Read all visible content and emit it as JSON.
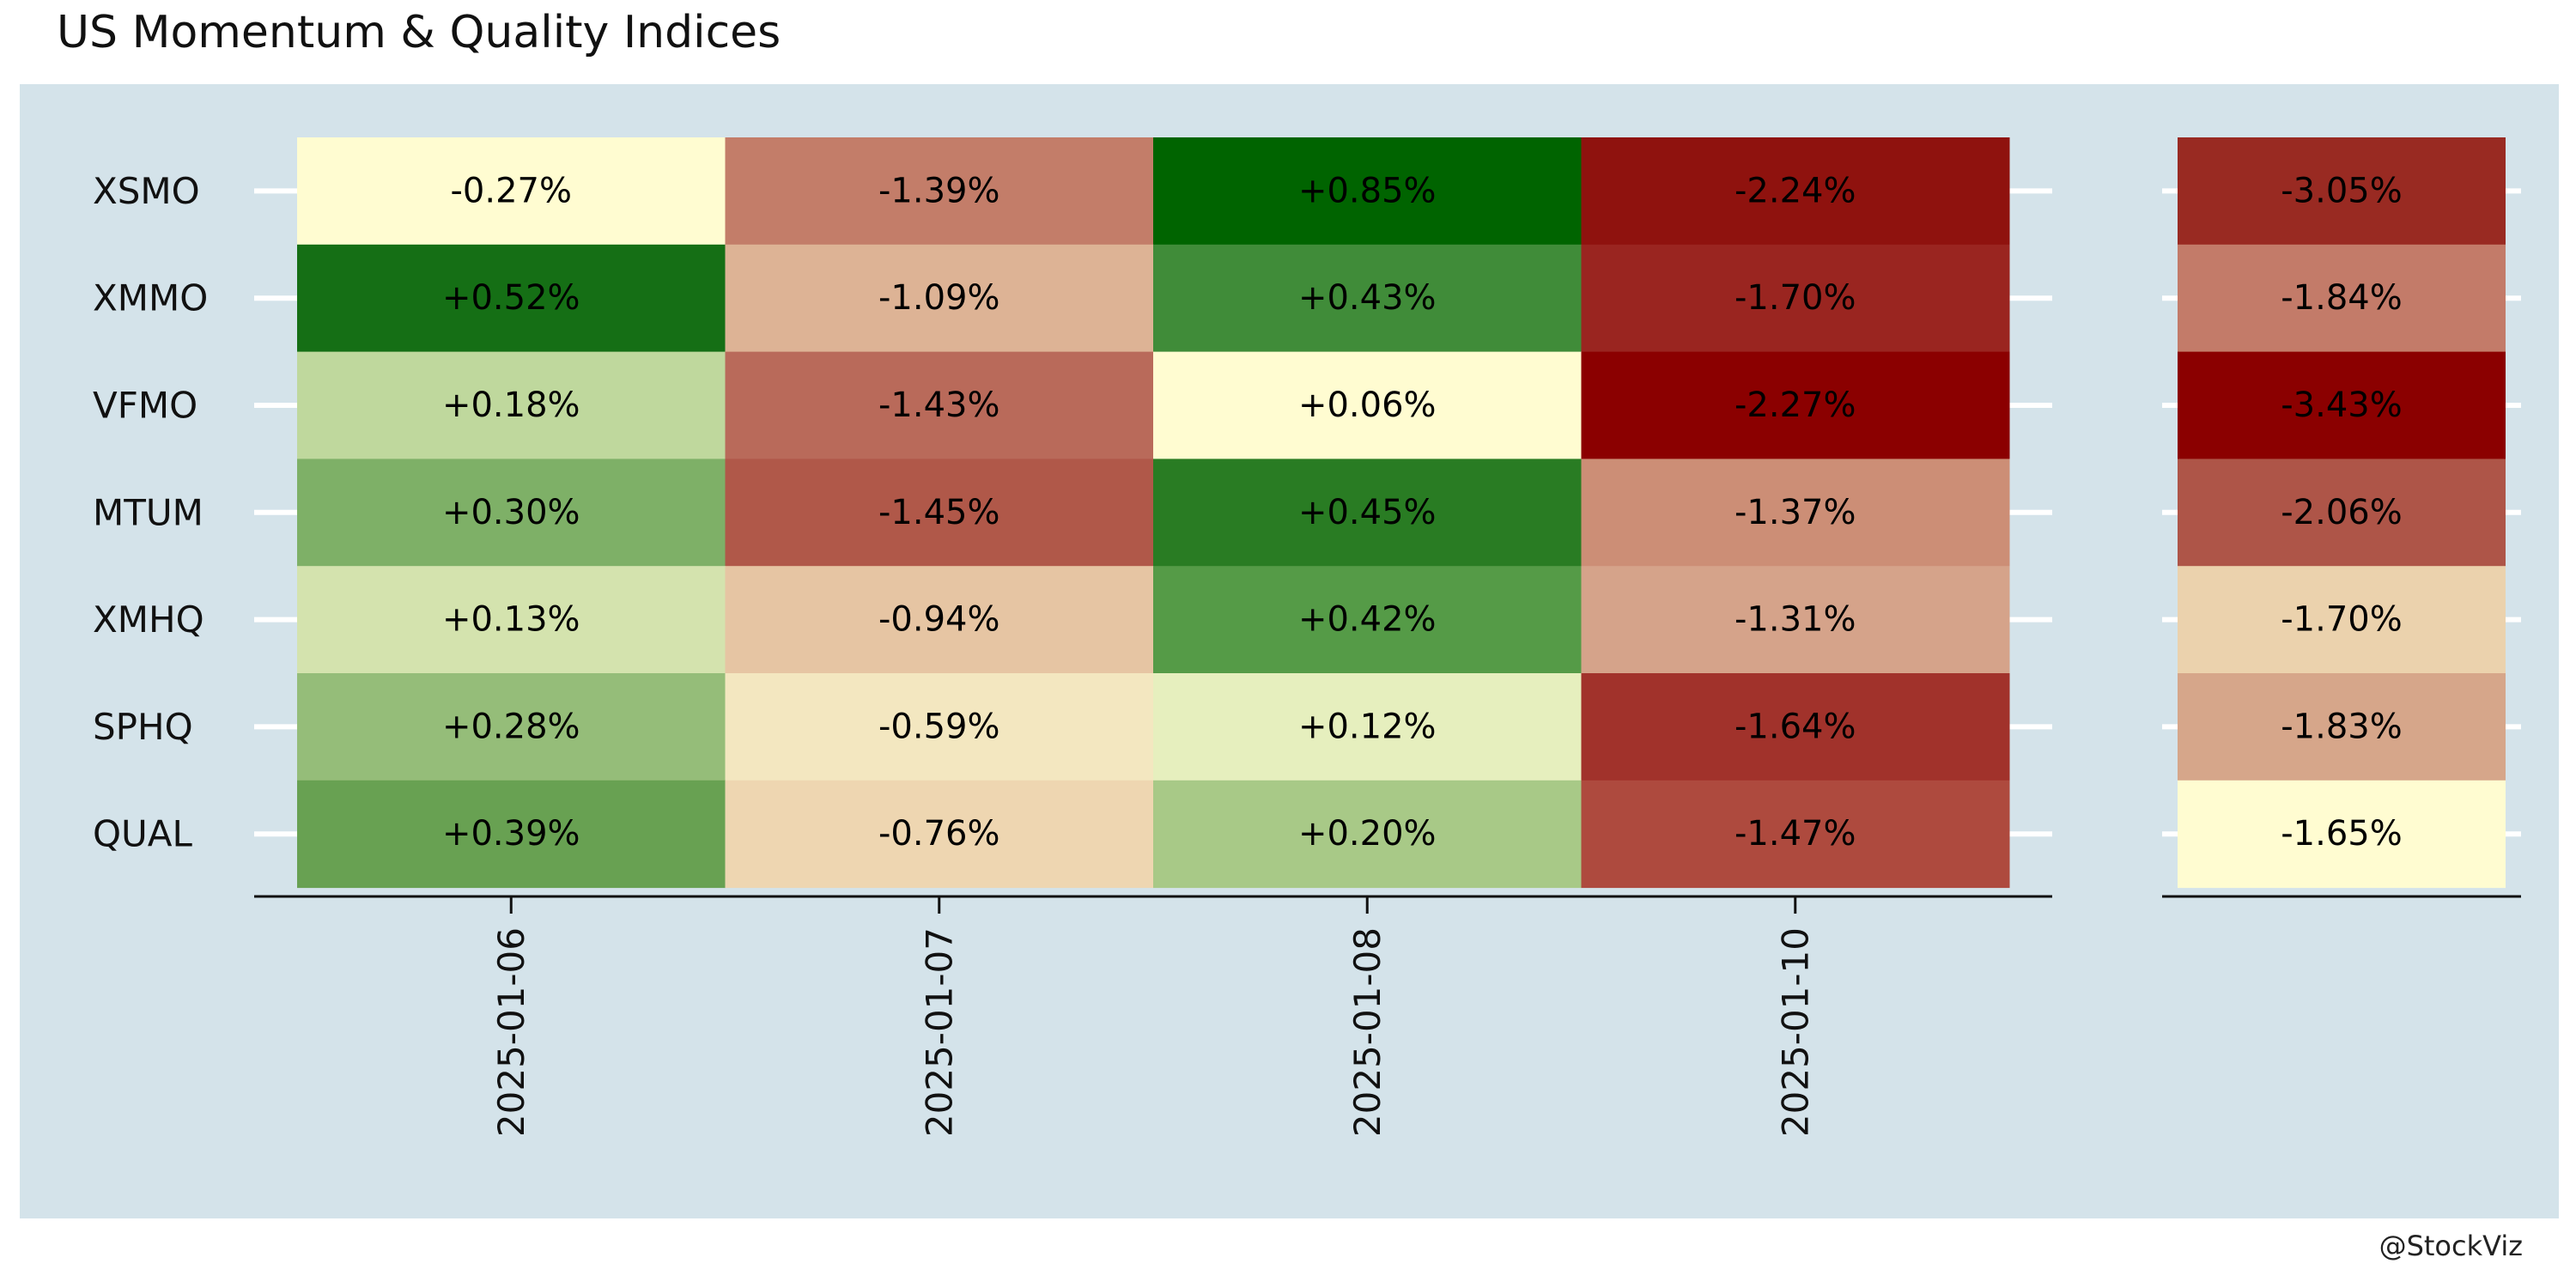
{
  "title": "US Momentum & Quality Indices",
  "credit": "@StockViz",
  "chart_data": {
    "type": "heatmap",
    "title": "US Momentum & Quality Indices",
    "rows": [
      "XSMO",
      "XMMO",
      "VFMO",
      "MTUM",
      "XMHQ",
      "SPHQ",
      "QUAL"
    ],
    "columns": [
      "2025-01-06",
      "2025-01-07",
      "2025-01-08",
      "2025-01-10"
    ],
    "values": [
      [
        -0.27,
        -1.39,
        0.85,
        -2.24
      ],
      [
        0.52,
        -1.09,
        0.43,
        -1.7
      ],
      [
        0.18,
        -1.43,
        0.06,
        -2.27
      ],
      [
        0.3,
        -1.45,
        0.45,
        -1.37
      ],
      [
        0.13,
        -0.94,
        0.42,
        -1.31
      ],
      [
        0.28,
        -0.59,
        0.12,
        -1.64
      ],
      [
        0.39,
        -0.76,
        0.2,
        -1.47
      ]
    ],
    "labels": [
      [
        "-0.27%",
        "-1.39%",
        "+0.85%",
        "-2.24%"
      ],
      [
        "+0.52%",
        "-1.09%",
        "+0.43%",
        "-1.70%"
      ],
      [
        "+0.18%",
        "-1.43%",
        "+0.06%",
        "-2.27%"
      ],
      [
        "+0.30%",
        "-1.45%",
        "+0.45%",
        "-1.37%"
      ],
      [
        "+0.13%",
        "-0.94%",
        "+0.42%",
        "-1.31%"
      ],
      [
        "+0.28%",
        "-0.59%",
        "+0.12%",
        "-1.64%"
      ],
      [
        "+0.39%",
        "-0.76%",
        "+0.20%",
        "-1.47%"
      ]
    ],
    "cell_colors": [
      [
        "#fffcd1",
        "#c37d69",
        "#006400",
        "#8f120e"
      ],
      [
        "#156f15",
        "#ddb395",
        "#408c39",
        "#9a2520"
      ],
      [
        "#bfd89d",
        "#b96a5a",
        "#fffcd1",
        "#8b0000"
      ],
      [
        "#7eb067",
        "#b05849",
        "#297c23",
        "#cc8e76"
      ],
      [
        "#d4e3ae",
        "#e6c5a3",
        "#559b47",
        "#d5a38a"
      ],
      [
        "#95bd79",
        "#f3e7c0",
        "#e6efbe",
        "#a1322b"
      ],
      [
        "#68a152",
        "#eed6b1",
        "#a8c987",
        "#ae4a3e"
      ]
    ],
    "summary_values": [
      -3.05,
      -1.84,
      -3.43,
      -2.06,
      -1.7,
      -1.83,
      -1.65
    ],
    "summary_labels": [
      "-3.05%",
      "-1.84%",
      "-3.43%",
      "-2.06%",
      "-1.70%",
      "-1.83%",
      "-1.65%"
    ],
    "summary_colors": [
      "#992a22",
      "#c37b69",
      "#8b0000",
      "#ae5548",
      "#ebd2ad",
      "#d6a68a",
      "#fffcd1"
    ],
    "colors": {
      "panel_background": "#d4e3ea",
      "gridline": "#ffffff",
      "axis": "#111111",
      "text": "#000000"
    }
  }
}
